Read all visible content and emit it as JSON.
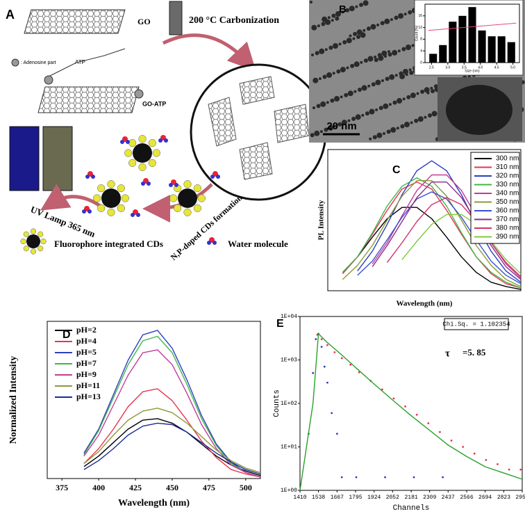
{
  "panel_a": {
    "label": "A",
    "go": "GO",
    "atp": "ATP",
    "adenosine": ": Adenosine part",
    "go_atp": "GO-ATP",
    "carbonization": "200 °C Carbonization",
    "formation": "N,P-doped CDs formation",
    "uv_lamp": "UV Lamp 365 nm",
    "cd_legend": "Fluorophore integrated CDs",
    "water_legend": "Water molecule"
  },
  "panel_b": {
    "label": "B",
    "scale_bar": "20 nm"
  },
  "chart_data": [
    {
      "type": "histogram",
      "xlabel": "Size (nm)",
      "ylabel": "Count (%)",
      "bins": [
        2.4,
        2.7,
        3.0,
        3.3,
        3.6,
        3.9,
        4.2,
        4.5,
        4.8,
        5.1
      ],
      "values": [
        3,
        6,
        14,
        16,
        19,
        11,
        9,
        9,
        7
      ],
      "color": "#000000",
      "xlim": [
        2.3,
        5.2
      ],
      "ylim": [
        0,
        20
      ],
      "xticks": [
        2.5,
        {
          "value": 3,
          "label": "3.0"
        },
        3.5,
        {
          "value": 4,
          "label": "4.0"
        },
        4.5,
        {
          "value": 5,
          "label": "5.0"
        }
      ],
      "yticks": [
        0,
        4,
        8,
        12,
        16
      ],
      "fit": {
        "color": "#e8447a",
        "x": [
          2.4,
          5.1
        ],
        "values": [
          11,
          13.5
        ]
      }
    },
    {
      "panel": "C",
      "type": "line",
      "xlabel": "Wavelength (nm)",
      "ylabel": "PL Intensity",
      "x": [
        0,
        1,
        2,
        3,
        4,
        5,
        6,
        7,
        8,
        9,
        10,
        11,
        12
      ],
      "xlim": [
        -1,
        12
      ],
      "ylim": [
        0,
        100
      ],
      "legend": "upper right",
      "series": [
        {
          "name": "300 nm",
          "color": "#000000",
          "values": [
            13,
            24,
            38,
            51,
            59,
            59,
            51,
            38,
            24,
            13,
            6,
            3,
            1
          ]
        },
        {
          "name": "310 nm",
          "color": "#e8344d",
          "values": [
            12,
            24,
            40,
            57,
            72,
            77,
            72,
            57,
            40,
            24,
            12,
            5,
            2
          ]
        },
        {
          "name": "320 nm",
          "color": "#2b3fbf",
          "values": [
            null,
            14,
            28,
            47,
            68,
            85,
            92,
            85,
            68,
            47,
            28,
            14,
            6
          ]
        },
        {
          "name": "330 nm",
          "color": "#3fb54a",
          "values": [
            13,
            24,
            41,
            60,
            74,
            80,
            74,
            60,
            41,
            24,
            13,
            6,
            2
          ]
        },
        {
          "name": "340 nm",
          "color": "#c13b9a",
          "values": [
            null,
            null,
            19,
            34,
            53,
            71,
            82,
            82,
            71,
            53,
            34,
            19,
            9
          ]
        },
        {
          "name": "350 nm",
          "color": "#8a9a3a",
          "values": [
            8,
            18,
            32,
            50,
            67,
            78,
            78,
            67,
            50,
            32,
            18,
            8,
            3
          ]
        },
        {
          "name": "360 nm",
          "color": "#3a4fd0",
          "values": [
            null,
            11,
            21,
            36,
            52,
            65,
            70,
            65,
            52,
            36,
            21,
            11,
            5
          ]
        },
        {
          "name": "370 nm",
          "color": "#8a2b8a",
          "values": [
            null,
            null,
            17,
            32,
            49,
            66,
            77,
            77,
            66,
            49,
            32,
            17,
            8
          ]
        },
        {
          "name": "380 nm",
          "color": "#d0306a",
          "values": [
            null,
            null,
            null,
            20,
            34,
            49,
            61,
            66,
            61,
            49,
            34,
            20,
            10
          ]
        },
        {
          "name": "390 nm",
          "color": "#7fc93f",
          "values": [
            null,
            null,
            null,
            null,
            22,
            35,
            47,
            54,
            54,
            47,
            35,
            22,
            12
          ]
        }
      ]
    },
    {
      "panel": "D",
      "type": "line",
      "xlabel": "Wavelength (nm)",
      "ylabel": "Normalized Intensity",
      "x": [
        390,
        400,
        410,
        420,
        430,
        440,
        450,
        460,
        470,
        480,
        490,
        500,
        510
      ],
      "xlim": [
        365,
        510
      ],
      "ylim": [
        0,
        1.05
      ],
      "xticks": [
        375,
        400,
        425,
        450,
        475,
        500
      ],
      "legend": "upper left",
      "series": [
        {
          "name": "pH=2",
          "color": "#000000",
          "values": [
            0.08,
            0.15,
            0.24,
            0.33,
            0.39,
            0.4,
            0.37,
            0.31,
            0.23,
            0.15,
            0.09,
            0.05,
            0.02
          ]
        },
        {
          "name": "pH=4",
          "color": "#e8344d",
          "values": [
            0.1,
            0.2,
            0.33,
            0.48,
            0.58,
            0.6,
            0.52,
            0.39,
            0.25,
            0.14,
            0.06,
            0.03,
            0.01
          ]
        },
        {
          "name": "pH=5",
          "color": "#2b3fbf",
          "values": [
            0.17,
            0.33,
            0.56,
            0.79,
            0.96,
            0.99,
            0.87,
            0.66,
            0.42,
            0.23,
            0.11,
            0.04,
            0.01
          ]
        },
        {
          "name": "pH=7",
          "color": "#3fb54a",
          "values": [
            0.16,
            0.32,
            0.54,
            0.76,
            0.92,
            0.95,
            0.84,
            0.63,
            0.4,
            0.22,
            0.1,
            0.04,
            0.01
          ]
        },
        {
          "name": "pH=9",
          "color": "#c13b9a",
          "values": [
            0.15,
            0.29,
            0.49,
            0.69,
            0.84,
            0.86,
            0.76,
            0.57,
            0.36,
            0.2,
            0.09,
            0.04,
            0.01
          ]
        },
        {
          "name": "pH=11",
          "color": "#8a9a3a",
          "values": [
            0.1,
            0.18,
            0.29,
            0.39,
            0.45,
            0.47,
            0.44,
            0.37,
            0.28,
            0.19,
            0.12,
            0.07,
            0.04
          ]
        },
        {
          "name": "pH=13",
          "color": "#1a2a9a",
          "values": [
            0.06,
            0.12,
            0.2,
            0.29,
            0.35,
            0.37,
            0.36,
            0.31,
            0.24,
            0.17,
            0.11,
            0.06,
            0.03
          ]
        }
      ]
    },
    {
      "panel": "E",
      "type": "line",
      "xlabel": "Channels",
      "ylabel": "Counts",
      "log_y": true,
      "xlim": [
        1410,
        2951
      ],
      "ylim": [
        1,
        10000
      ],
      "xticks": [
        1410,
        1538,
        1667,
        1795,
        1924,
        2052,
        2181,
        2309,
        2437,
        2566,
        2694,
        2823,
        2951
      ],
      "yticks": [
        {
          "value": 1,
          "label": "1E+00"
        },
        {
          "value": 10,
          "label": "1E+01"
        },
        {
          "value": 100,
          "label": "1E+02"
        },
        {
          "value": 1000,
          "label": "1E+03"
        },
        {
          "value": 10000,
          "label": "1E+04"
        }
      ],
      "annotations": {
        "chi_sq": "Chi.Sq. = 1.102354",
        "tau": "τ",
        "tau_value": "=5. 85"
      },
      "series": [
        {
          "color": "#e8344d",
          "marker": "dots",
          "x": [
            1530,
            1560,
            1600,
            1650,
            1700,
            1760,
            1820,
            1900,
            1980,
            2060,
            2140,
            2220,
            2300,
            2380,
            2460,
            2540,
            2620,
            2700,
            2780,
            2860,
            2940
          ],
          "values": [
            3800,
            3000,
            2200,
            1500,
            1100,
            780,
            520,
            330,
            210,
            130,
            85,
            55,
            35,
            22,
            14,
            10,
            7,
            5,
            4,
            3,
            3
          ]
        },
        {
          "color": "#2b3fbf",
          "marker": "dots",
          "x": [
            1470,
            1500,
            1520,
            1538,
            1560,
            1580,
            1600,
            1630,
            1667,
            1700,
            1800,
            2000,
            2200,
            2400
          ],
          "values": [
            20,
            500,
            3000,
            4000,
            2000,
            700,
            300,
            60,
            20,
            2,
            2,
            2,
            2,
            2
          ]
        },
        {
          "color": "#2aa02a",
          "marker": "line",
          "x": [
            1410,
            1500,
            1538,
            1600,
            1700,
            1800,
            1924,
            2052,
            2181,
            2309,
            2437,
            2566,
            2694,
            2823,
            2951
          ],
          "values": [
            1,
            100,
            4000,
            2500,
            1300,
            650,
            280,
            120,
            52,
            24,
            11,
            6,
            3.5,
            2.5,
            1.8
          ]
        }
      ]
    }
  ]
}
